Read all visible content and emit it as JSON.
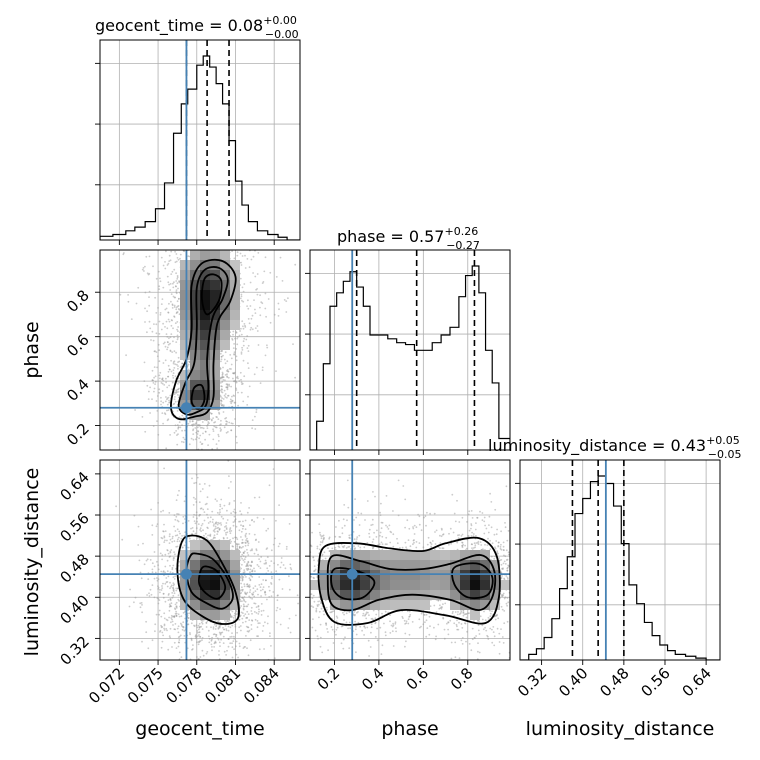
{
  "chart_data": {
    "type": "corner",
    "parameters": [
      "geocent_time",
      "phase",
      "luminosity_distance"
    ],
    "truth": {
      "geocent_time": 0.0772,
      "phase": 0.28,
      "luminosity_distance": 0.445
    },
    "titles": [
      {
        "param": "geocent_time",
        "text": "geocent_time = 0.08",
        "plus": "+0.00",
        "minus": "−0.00"
      },
      {
        "param": "phase",
        "text": "phase = 0.57",
        "plus": "+0.26",
        "minus": "−0.27"
      },
      {
        "param": "luminosity_distance",
        "text": "luminosity_distance = 0.43",
        "plus": "+0.05",
        "minus": "−0.05"
      }
    ],
    "axes": {
      "geocent_time": {
        "range": [
          0.0705,
          0.086
        ],
        "ticks": [
          "0.072",
          "0.075",
          "0.078",
          "0.081",
          "0.084"
        ],
        "tick_values": [
          0.072,
          0.075,
          0.078,
          0.081,
          0.084
        ],
        "label": "geocent_time"
      },
      "phase": {
        "range": [
          0.09,
          0.99
        ],
        "ticks": [
          "0.2",
          "0.4",
          "0.6",
          "0.8"
        ],
        "tick_values": [
          0.2,
          0.4,
          0.6,
          0.8
        ],
        "label": "phase"
      },
      "luminosity_distance": {
        "range": [
          0.278,
          0.667
        ],
        "ticks": [
          "0.32",
          "0.40",
          "0.48",
          "0.56",
          "0.64"
        ],
        "tick_values": [
          0.32,
          0.4,
          0.48,
          0.56,
          0.64
        ],
        "label": "luminosity_distance"
      }
    },
    "histograms": {
      "geocent_time": {
        "edges": [
          0.0705,
          0.0715,
          0.0725,
          0.0732,
          0.074,
          0.0748,
          0.0755,
          0.0762,
          0.0768,
          0.0773,
          0.078,
          0.0785,
          0.079,
          0.0795,
          0.08,
          0.0805,
          0.081,
          0.0815,
          0.082,
          0.0827,
          0.0835,
          0.0843,
          0.085,
          0.086
        ],
        "counts": [
          0.02,
          0.03,
          0.05,
          0.07,
          0.1,
          0.17,
          0.31,
          0.58,
          0.74,
          0.82,
          0.95,
          1.0,
          0.94,
          0.85,
          0.74,
          0.54,
          0.32,
          0.19,
          0.1,
          0.05,
          0.03,
          0.015,
          0.0
        ],
        "quantiles": [
          0.0772,
          0.0788,
          0.0805
        ],
        "grid_y": [
          0.3,
          0.63,
          0.96
        ]
      },
      "phase": {
        "edges": [
          0.09,
          0.12,
          0.15,
          0.18,
          0.21,
          0.24,
          0.27,
          0.3,
          0.33,
          0.36,
          0.4,
          0.44,
          0.48,
          0.52,
          0.56,
          0.6,
          0.64,
          0.68,
          0.72,
          0.76,
          0.79,
          0.82,
          0.85,
          0.88,
          0.91,
          0.94,
          0.99
        ],
        "counts": [
          0.0,
          0.15,
          0.45,
          0.75,
          0.82,
          0.88,
          0.93,
          0.85,
          0.75,
          0.6,
          0.6,
          0.58,
          0.56,
          0.55,
          0.52,
          0.52,
          0.56,
          0.6,
          0.64,
          0.8,
          0.91,
          0.96,
          0.82,
          0.52,
          0.35,
          0.06
        ],
        "quantiles": [
          0.3,
          0.57,
          0.83
        ],
        "grid_y": [
          0.3,
          0.63,
          0.96
        ]
      },
      "luminosity_distance": {
        "edges": [
          0.28,
          0.295,
          0.31,
          0.325,
          0.34,
          0.355,
          0.37,
          0.385,
          0.4,
          0.415,
          0.43,
          0.445,
          0.46,
          0.475,
          0.49,
          0.505,
          0.52,
          0.535,
          0.55,
          0.565,
          0.58,
          0.6,
          0.62,
          0.64,
          0.667
        ],
        "counts": [
          0.0,
          0.03,
          0.06,
          0.12,
          0.22,
          0.38,
          0.55,
          0.78,
          0.86,
          0.95,
          0.98,
          0.94,
          0.82,
          0.62,
          0.4,
          0.3,
          0.2,
          0.13,
          0.08,
          0.05,
          0.03,
          0.02,
          0.01,
          0.0
        ],
        "quantiles": [
          0.38,
          0.43,
          0.48
        ],
        "grid_y": [
          0.3,
          0.63,
          0.96
        ]
      }
    },
    "joint": [
      {
        "x": "geocent_time",
        "y": "phase",
        "blobs": [
          {
            "cx": 0.0789,
            "cy": 0.79,
            "sx": 0.0014,
            "sy": 0.13,
            "w": 1.0
          },
          {
            "cx": 0.0785,
            "cy": 0.55,
            "sx": 0.0009,
            "sy": 0.13,
            "w": 0.55
          },
          {
            "cx": 0.0782,
            "cy": 0.33,
            "sx": 0.001,
            "sy": 0.06,
            "w": 0.85
          }
        ],
        "contours": [
          [
            [
              0.0778,
              0.24
            ],
            [
              0.0788,
              0.26
            ],
            [
              0.0793,
              0.33
            ],
            [
              0.0793,
              0.48
            ],
            [
              0.0796,
              0.66
            ],
            [
              0.0806,
              0.76
            ],
            [
              0.081,
              0.87
            ],
            [
              0.08,
              0.94
            ],
            [
              0.0784,
              0.93
            ],
            [
              0.0776,
              0.83
            ],
            [
              0.0776,
              0.63
            ],
            [
              0.0772,
              0.5
            ],
            [
              0.0764,
              0.4
            ],
            [
              0.076,
              0.28
            ],
            [
              0.0766,
              0.23
            ]
          ],
          [
            [
              0.078,
              0.26
            ],
            [
              0.0787,
              0.29
            ],
            [
              0.0789,
              0.37
            ],
            [
              0.0788,
              0.5
            ],
            [
              0.0792,
              0.68
            ],
            [
              0.08,
              0.77
            ],
            [
              0.0804,
              0.86
            ],
            [
              0.0797,
              0.91
            ],
            [
              0.0786,
              0.9
            ],
            [
              0.078,
              0.82
            ],
            [
              0.078,
              0.64
            ],
            [
              0.0778,
              0.48
            ],
            [
              0.0771,
              0.39
            ],
            [
              0.0766,
              0.29
            ],
            [
              0.0772,
              0.25
            ]
          ],
          [
            [
              0.0783,
              0.28
            ],
            [
              0.0786,
              0.32
            ],
            [
              0.0784,
              0.38
            ],
            [
              0.0778,
              0.37
            ],
            [
              0.0776,
              0.31
            ],
            [
              0.0779,
              0.28
            ]
          ],
          [
            [
              0.0788,
              0.7
            ],
            [
              0.0797,
              0.76
            ],
            [
              0.0799,
              0.85
            ],
            [
              0.0793,
              0.88
            ],
            [
              0.0786,
              0.86
            ],
            [
              0.0784,
              0.77
            ]
          ]
        ]
      },
      {
        "x": "geocent_time",
        "y": "luminosity_distance",
        "blobs": [
          {
            "cx": 0.0791,
            "cy": 0.43,
            "sx": 0.0014,
            "sy": 0.045,
            "w": 1.0
          }
        ],
        "contours": [
          [
            [
              0.0775,
              0.52
            ],
            [
              0.0788,
              0.51
            ],
            [
              0.08,
              0.465
            ],
            [
              0.081,
              0.41
            ],
            [
              0.0812,
              0.36
            ],
            [
              0.08,
              0.348
            ],
            [
              0.0785,
              0.362
            ],
            [
              0.077,
              0.395
            ],
            [
              0.0765,
              0.45
            ],
            [
              0.0768,
              0.505
            ]
          ],
          [
            [
              0.078,
              0.485
            ],
            [
              0.0792,
              0.475
            ],
            [
              0.0803,
              0.44
            ],
            [
              0.0808,
              0.4
            ],
            [
              0.08,
              0.378
            ],
            [
              0.0788,
              0.388
            ],
            [
              0.0776,
              0.41
            ],
            [
              0.0772,
              0.45
            ],
            [
              0.0775,
              0.48
            ]
          ],
          [
            [
              0.0787,
              0.46
            ],
            [
              0.0796,
              0.45
            ],
            [
              0.0802,
              0.42
            ],
            [
              0.0797,
              0.398
            ],
            [
              0.0789,
              0.404
            ],
            [
              0.0782,
              0.425
            ],
            [
              0.0783,
              0.452
            ]
          ]
        ]
      },
      {
        "x": "phase",
        "y": "luminosity_distance",
        "blobs": [
          {
            "cx": 0.27,
            "cy": 0.43,
            "sx": 0.09,
            "sy": 0.035,
            "w": 0.9
          },
          {
            "cx": 0.84,
            "cy": 0.43,
            "sx": 0.07,
            "sy": 0.035,
            "w": 1.0
          },
          {
            "cx": 0.55,
            "cy": 0.44,
            "sx": 0.15,
            "sy": 0.045,
            "w": 0.45
          }
        ],
        "contours": [
          [
            [
              0.16,
              0.5
            ],
            [
              0.3,
              0.505
            ],
            [
              0.45,
              0.495
            ],
            [
              0.6,
              0.49
            ],
            [
              0.7,
              0.505
            ],
            [
              0.85,
              0.515
            ],
            [
              0.93,
              0.48
            ],
            [
              0.94,
              0.4
            ],
            [
              0.88,
              0.35
            ],
            [
              0.7,
              0.365
            ],
            [
              0.5,
              0.375
            ],
            [
              0.35,
              0.35
            ],
            [
              0.2,
              0.352
            ],
            [
              0.14,
              0.4
            ],
            [
              0.13,
              0.46
            ]
          ],
          [
            [
              0.19,
              0.48
            ],
            [
              0.32,
              0.47
            ],
            [
              0.45,
              0.455
            ],
            [
              0.6,
              0.455
            ],
            [
              0.72,
              0.465
            ],
            [
              0.86,
              0.482
            ],
            [
              0.92,
              0.45
            ],
            [
              0.91,
              0.4
            ],
            [
              0.85,
              0.375
            ],
            [
              0.72,
              0.395
            ],
            [
              0.55,
              0.405
            ],
            [
              0.4,
              0.395
            ],
            [
              0.28,
              0.375
            ],
            [
              0.19,
              0.385
            ],
            [
              0.17,
              0.43
            ]
          ],
          [
            [
              0.2,
              0.455
            ],
            [
              0.31,
              0.45
            ],
            [
              0.38,
              0.43
            ],
            [
              0.33,
              0.4
            ],
            [
              0.24,
              0.398
            ],
            [
              0.19,
              0.42
            ]
          ],
          [
            [
              0.74,
              0.458
            ],
            [
              0.85,
              0.465
            ],
            [
              0.91,
              0.44
            ],
            [
              0.89,
              0.405
            ],
            [
              0.8,
              0.4
            ],
            [
              0.74,
              0.425
            ]
          ]
        ]
      }
    ]
  }
}
